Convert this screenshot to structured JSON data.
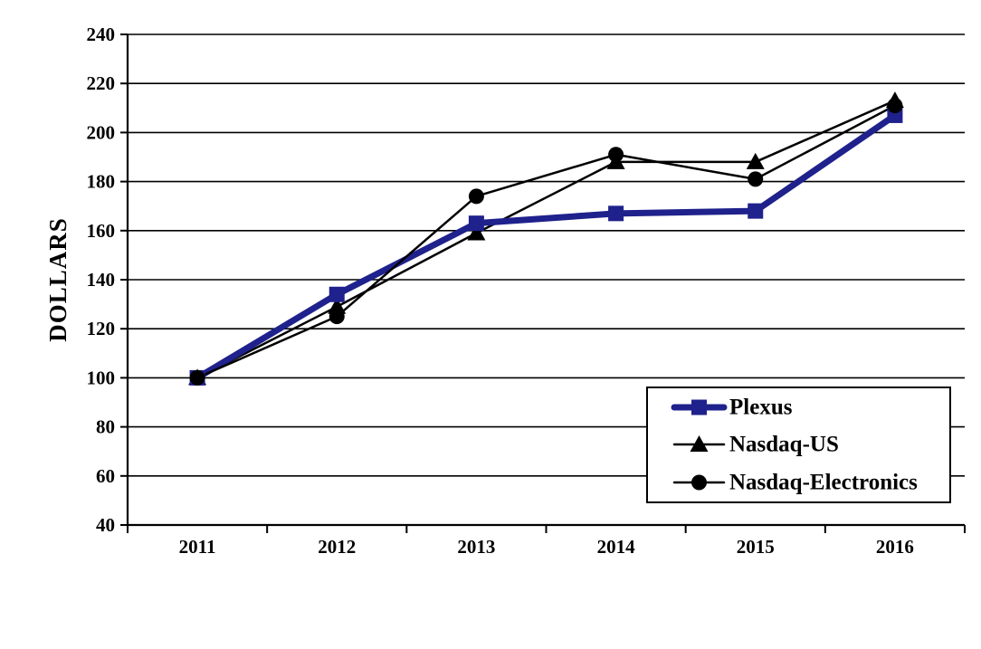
{
  "chart_data": {
    "type": "line",
    "title": "",
    "categories": [
      "2011",
      "2012",
      "2013",
      "2014",
      "2015",
      "2016"
    ],
    "series": [
      {
        "name": "Plexus",
        "marker": "square",
        "color": "#1F218C",
        "line_width": 7,
        "values": [
          100,
          134,
          163,
          167,
          168,
          207
        ]
      },
      {
        "name": "Nasdaq-US",
        "marker": "triangle",
        "color": "#000000",
        "line_width": 2.5,
        "values": [
          100,
          129,
          159,
          188,
          188,
          213
        ]
      },
      {
        "name": "Nasdaq-Electronics",
        "marker": "circle",
        "color": "#000000",
        "line_width": 2.5,
        "values": [
          100,
          125,
          174,
          191,
          181,
          211
        ]
      }
    ],
    "xlabel": "",
    "ylabel": "DOLLARS",
    "ylim": [
      40,
      240
    ],
    "ytick_step": 20,
    "grid": true,
    "legend_position": "inside-bottom-right"
  },
  "colors": {
    "background": "#FFFFFF",
    "axis": "#000000",
    "gridline": "#000000",
    "plexus_blue": "#1F218C"
  }
}
